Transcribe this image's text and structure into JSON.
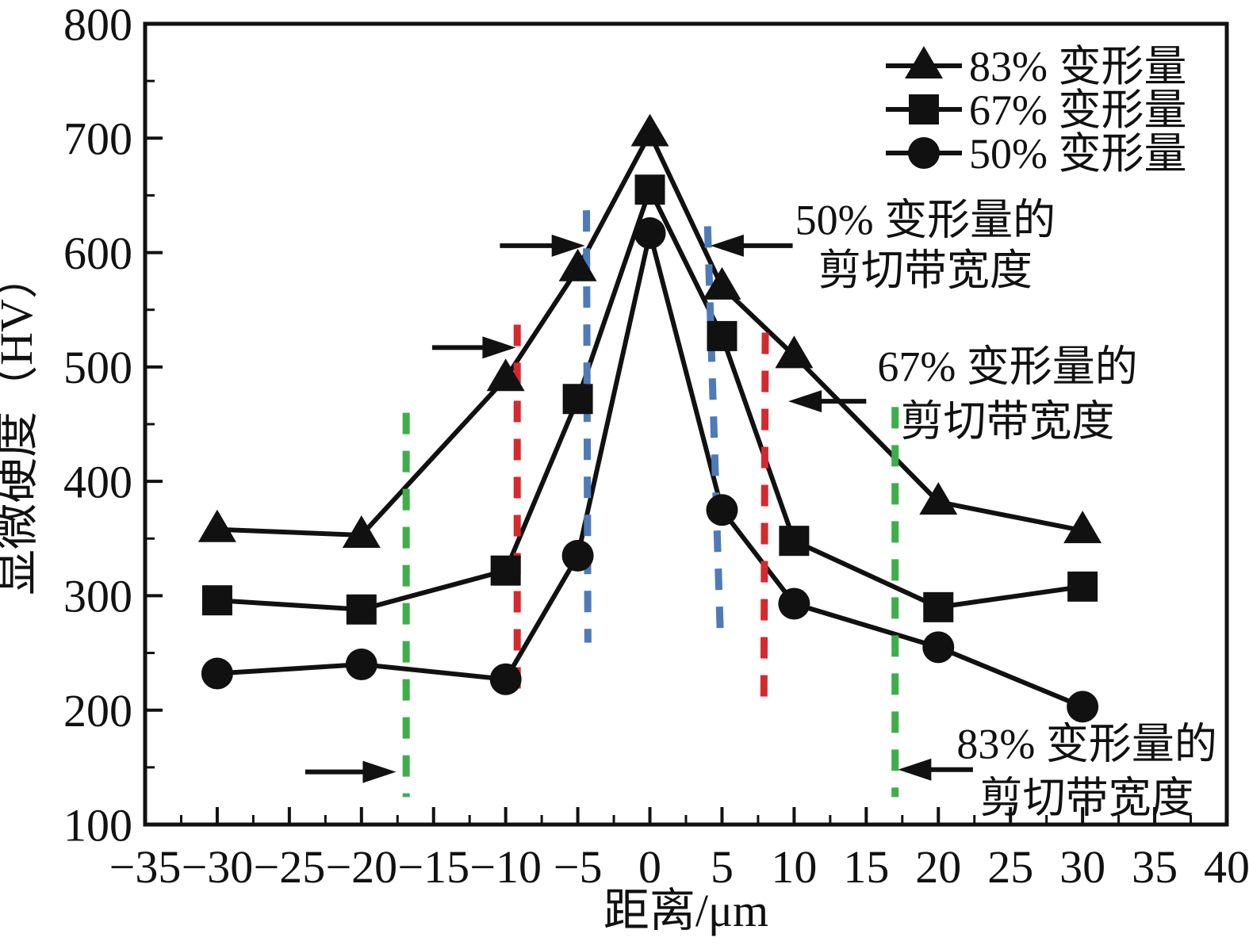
{
  "figure": {
    "background": "#ffffff",
    "frame_color": "#111111",
    "series_color": "#111111"
  },
  "chart_data": {
    "type": "line",
    "title": "",
    "xlabel": "距离/μm",
    "ylabel": "显微硬度（HV）",
    "xlim": [
      -35,
      40
    ],
    "ylim": [
      100,
      800
    ],
    "x_major_step": 5,
    "y_major_step": 100,
    "grid": "off",
    "legend_position": "top-right-inside",
    "x_ticks": [
      "−35",
      "−30",
      "−25",
      "−20",
      "−15",
      "−10",
      "−5",
      "0",
      "5",
      "10",
      "15",
      "20",
      "25",
      "30",
      "35",
      "40"
    ],
    "y_ticks": [
      "100",
      "200",
      "300",
      "400",
      "500",
      "600",
      "700",
      "800"
    ],
    "x": [
      -30,
      -20,
      -10,
      -5,
      0,
      5,
      10,
      20,
      30
    ],
    "series": [
      {
        "name": "83% 变形量",
        "marker": "triangle",
        "values": [
          358,
          353,
          490,
          586,
          704,
          570,
          510,
          382,
          357
        ]
      },
      {
        "name": "67% 变形量",
        "marker": "square",
        "values": [
          296,
          288,
          322,
          472,
          655,
          527,
          348,
          290,
          308
        ]
      },
      {
        "name": "50% 变形量",
        "marker": "circle",
        "values": [
          232,
          240,
          227,
          335,
          617,
          375,
          293,
          255,
          203
        ]
      }
    ],
    "shear_band_guides": [
      {
        "name": "blue-left",
        "color": "#4f7ab8",
        "x1": -4.4,
        "y1": 637,
        "x2": -4.3,
        "y2": 259
      },
      {
        "name": "blue-right",
        "color": "#4f7ab8",
        "x1": 4.0,
        "y1": 623,
        "x2": 4.9,
        "y2": 259
      },
      {
        "name": "red-left",
        "color": "#d42a2e",
        "x1": -9.2,
        "y1": 537,
        "x2": -9.2,
        "y2": 205
      },
      {
        "name": "red-right",
        "color": "#d42a2e",
        "x1": 8.0,
        "y1": 530,
        "x2": 7.9,
        "y2": 202
      },
      {
        "name": "green-left",
        "color": "#3fae4a",
        "x1": -16.9,
        "y1": 460,
        "x2": -16.9,
        "y2": 124
      },
      {
        "name": "green-right",
        "color": "#3fae4a",
        "x1": 17.0,
        "y1": 465,
        "x2": 17.0,
        "y2": 124
      }
    ],
    "annotations": [
      {
        "lines": [
          "50% 变形量的",
          "剪切带宽度"
        ],
        "x": 19.1,
        "y_line1": 629,
        "y_line2": 585
      },
      {
        "lines": [
          "67% 变形量的",
          "剪切带宽度"
        ],
        "x": 24.8,
        "y_line1": 501,
        "y_line2": 453
      },
      {
        "lines": [
          "83% 变形量的",
          "剪切带宽度"
        ],
        "x": 30.3,
        "y_line1": 171,
        "y_line2": 124
      }
    ],
    "arrows": [
      {
        "x_tail": -10.4,
        "x_tip": -4.5,
        "y": 606
      },
      {
        "x_tail": 9.9,
        "x_tip": 4.2,
        "y": 606
      },
      {
        "x_tail": -15.1,
        "x_tip": -9.3,
        "y": 517
      },
      {
        "x_tail": 15.0,
        "x_tip": 9.6,
        "y": 470
      },
      {
        "x_tail": -23.9,
        "x_tip": -17.6,
        "y": 146
      },
      {
        "x_tail": 22.4,
        "x_tip": 17.2,
        "y": 148
      }
    ]
  }
}
